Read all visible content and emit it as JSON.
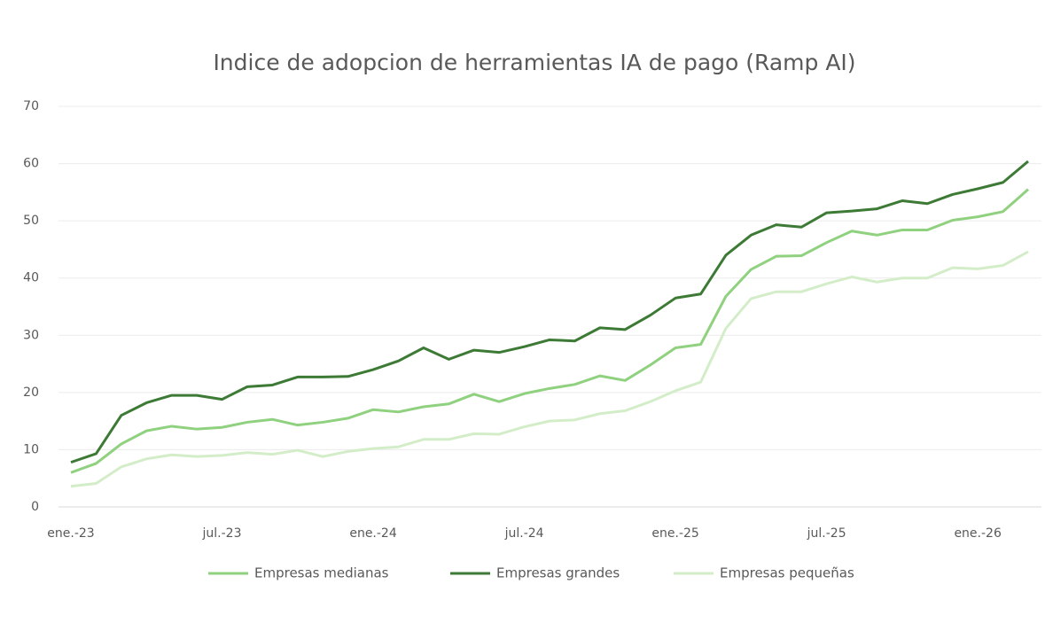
{
  "chart_data": {
    "type": "line",
    "title": "Indice de adopcion de herramientas IA de pago (Ramp AI)",
    "categories": [
      "ene.-23",
      null,
      null,
      null,
      null,
      null,
      "jul.-23",
      null,
      null,
      null,
      null,
      null,
      "ene.-24",
      null,
      null,
      null,
      null,
      null,
      "jul.-24",
      null,
      null,
      null,
      null,
      null,
      "ene.-25",
      null,
      null,
      null,
      null,
      null,
      "jul.-25",
      null,
      null,
      null,
      null,
      null,
      "ene.-26",
      null,
      null
    ],
    "series": [
      {
        "name": "Empresas medianas",
        "color": "#8fd17f",
        "values": [
          6,
          7.6,
          11,
          13.3,
          14.1,
          13.6,
          13.9,
          14.8,
          15.3,
          14.3,
          14.8,
          15.5,
          17,
          16.6,
          17.5,
          18,
          19.7,
          18.4,
          19.8,
          20.7,
          21.4,
          22.9,
          22.1,
          24.8,
          27.8,
          28.4,
          36.8,
          41.5,
          43.8,
          43.9,
          46.2,
          48.2,
          47.5,
          48.4,
          48.4,
          50.1,
          50.7,
          51.6,
          55.5
        ]
      },
      {
        "name": "Empresas grandes",
        "color": "#3d7a35",
        "values": [
          7.8,
          9.3,
          16,
          18.2,
          19.5,
          19.5,
          18.8,
          21,
          21.3,
          22.7,
          22.7,
          22.8,
          24,
          25.5,
          27.8,
          25.8,
          27.4,
          27,
          28,
          29.2,
          29,
          31.3,
          31,
          33.5,
          36.5,
          37.2,
          44,
          47.5,
          49.3,
          48.9,
          51.4,
          51.7,
          52.1,
          53.5,
          53,
          54.6,
          55.6,
          56.7,
          60.4
        ]
      },
      {
        "name": "Empresas pequeñas",
        "color": "#d4edc9",
        "values": [
          3.6,
          4.1,
          7,
          8.4,
          9.1,
          8.8,
          9,
          9.5,
          9.2,
          9.9,
          8.8,
          9.7,
          10.2,
          10.5,
          11.8,
          11.8,
          12.8,
          12.7,
          14,
          15,
          15.2,
          16.3,
          16.8,
          18.4,
          20.3,
          21.8,
          31.2,
          36.4,
          37.6,
          37.6,
          39,
          40.2,
          39.3,
          40,
          40,
          41.8,
          41.6,
          42.2,
          44.6
        ]
      }
    ],
    "ylim": [
      0,
      70
    ],
    "yticks": [
      0,
      10,
      20,
      30,
      40,
      50,
      60,
      70
    ],
    "grid": true,
    "legend": "bottom"
  }
}
